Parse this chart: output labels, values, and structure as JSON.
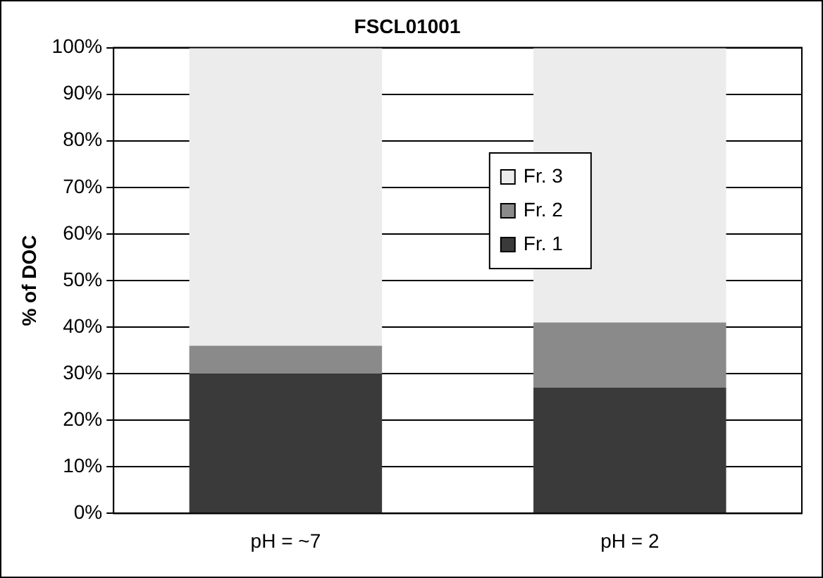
{
  "chart_data": {
    "type": "bar",
    "title": "FSCL01001",
    "ylabel": "% of DOC",
    "categories": [
      "pH = ~7",
      "pH = 2"
    ],
    "stacked": true,
    "series": [
      {
        "name": "Fr. 1",
        "color": "#3a3a3a",
        "values": [
          30,
          27
        ]
      },
      {
        "name": "Fr. 2",
        "color": "#8a8a8a",
        "values": [
          6,
          14
        ]
      },
      {
        "name": "Fr. 3",
        "color": "#ececec",
        "values": [
          64,
          59
        ]
      }
    ],
    "ylim": [
      0,
      100
    ],
    "yticks": [
      {
        "value": 0,
        "label": "0%"
      },
      {
        "value": 10,
        "label": "10%"
      },
      {
        "value": 20,
        "label": "20%"
      },
      {
        "value": 30,
        "label": "30%"
      },
      {
        "value": 40,
        "label": "40%"
      },
      {
        "value": 50,
        "label": "50%"
      },
      {
        "value": 60,
        "label": "60%"
      },
      {
        "value": 70,
        "label": "70%"
      },
      {
        "value": 80,
        "label": "80%"
      },
      {
        "value": 90,
        "label": "90%"
      },
      {
        "value": 100,
        "label": "100%"
      }
    ],
    "grid": "y",
    "legend": "center"
  }
}
